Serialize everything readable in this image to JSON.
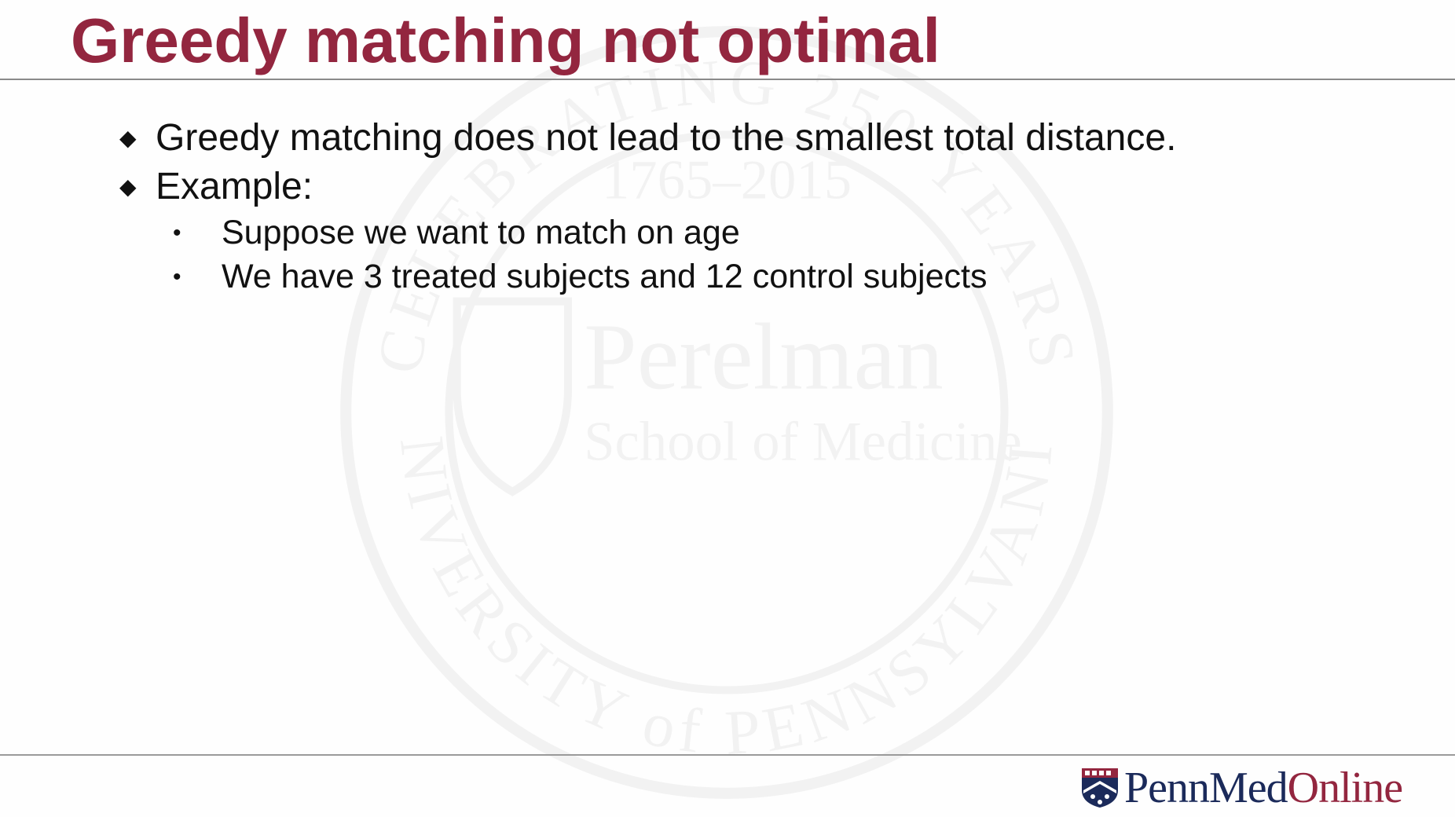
{
  "slide": {
    "title": "Greedy matching not optimal",
    "bullets": [
      {
        "text": "Greedy matching does not lead to the smallest total distance."
      },
      {
        "text": "Example:"
      }
    ],
    "sub_bullets": [
      {
        "text": "Suppose we want to match on age"
      },
      {
        "text": "We have 3 treated subjects and 12 control subjects"
      }
    ],
    "bullet_glyph": "◆",
    "sub_bullet_glyph": "•"
  },
  "watermark": {
    "name": "Perelman",
    "subtitle": "School of Medicine",
    "ring_top": "CELEBRATING 250 YEARS",
    "years": "1765–2015",
    "ring_bottom": "UNIVERSITY of PENNSYLVANIA"
  },
  "logo": {
    "part1": "PennMed",
    "part2": "Online",
    "icon": "penn-shield-icon"
  },
  "colors": {
    "title": "#93263f",
    "text": "#111111",
    "navy": "#1b2a5a",
    "rule": "#8a8a8a"
  }
}
